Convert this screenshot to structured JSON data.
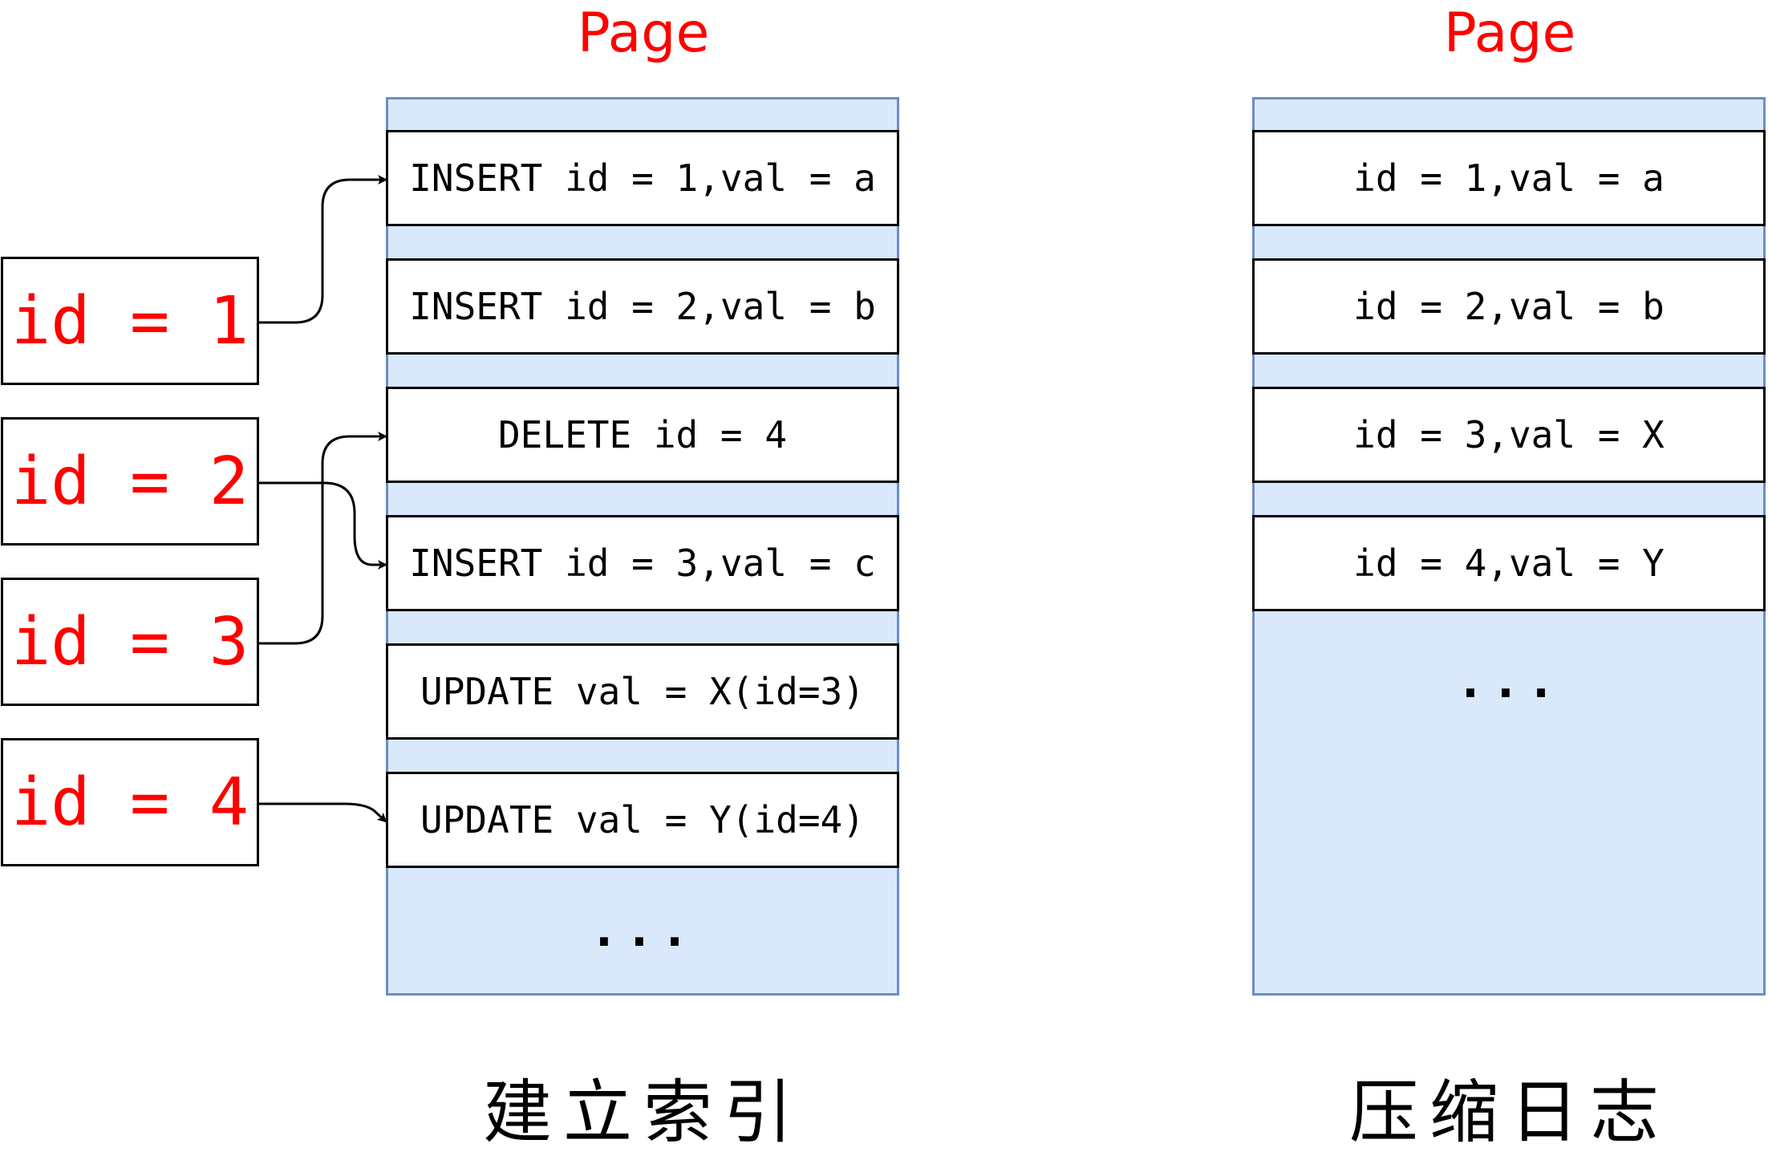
{
  "left_page": {
    "title": "Page",
    "records": [
      "INSERT id = 1,val = a",
      "INSERT id = 2,val = b",
      "DELETE id = 4",
      "INSERT id = 3,val = c",
      "UPDATE val = X(id=3)",
      "UPDATE val = Y(id=4)"
    ],
    "ellipsis": "...",
    "caption": "建立索引"
  },
  "right_page": {
    "title": "Page",
    "records": [
      "id = 1,val = a",
      "id = 2,val = b",
      "id = 3,val = X",
      "id = 4,val = Y"
    ],
    "ellipsis": "...",
    "caption": "压缩日志"
  },
  "index_keys": [
    "id = 1",
    "id = 2",
    "id = 3",
    "id = 4"
  ],
  "colors": {
    "page_fill": "#dae8fc",
    "page_border": "#6c8ebf",
    "highlight_text": "#ff0000"
  }
}
